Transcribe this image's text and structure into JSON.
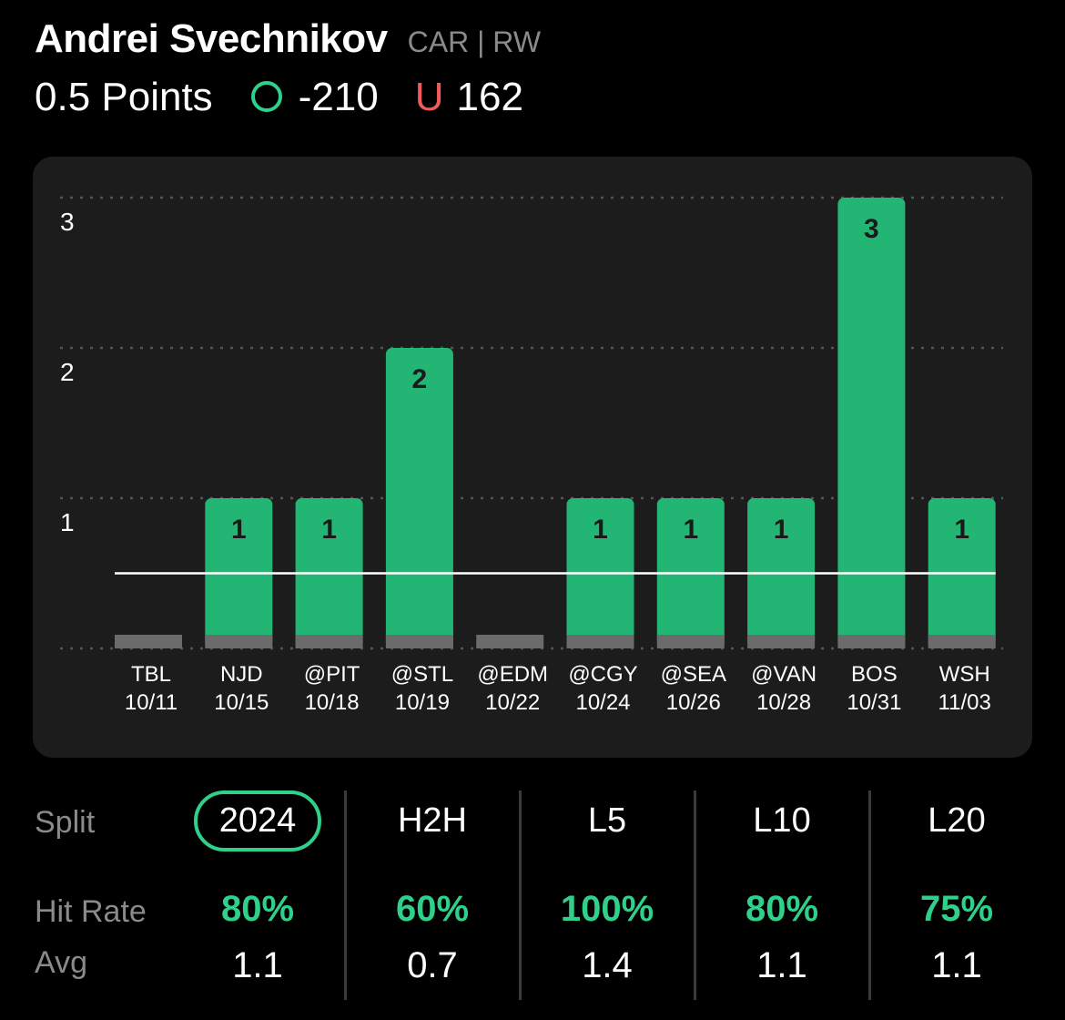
{
  "player": {
    "name": "Andrei Svechnikov",
    "team_pos": "CAR | RW",
    "line_label": "0.5 Points",
    "over_odds": "-210",
    "under_symbol": "U",
    "under_odds": "162"
  },
  "colors": {
    "hit": "#22b573",
    "miss": "#6b6b6b",
    "accent": "#2fd08a",
    "under": "#ef5b5b"
  },
  "chart_data": {
    "type": "bar",
    "categories": [
      "TBL 10/11",
      "NJD 10/15",
      "@PIT 10/18",
      "@STL 10/19",
      "@EDM 10/22",
      "@CGY 10/24",
      "@SEA 10/26",
      "@VAN 10/28",
      "BOS 10/31",
      "WSH 11/03"
    ],
    "opponents": [
      "TBL",
      "NJD",
      "@PIT",
      "@STL",
      "@EDM",
      "@CGY",
      "@SEA",
      "@VAN",
      "BOS",
      "WSH"
    ],
    "dates": [
      "10/11",
      "10/15",
      "10/18",
      "10/19",
      "10/22",
      "10/24",
      "10/26",
      "10/28",
      "10/31",
      "11/03"
    ],
    "values": [
      0,
      1,
      1,
      2,
      0,
      1,
      1,
      1,
      3,
      1
    ],
    "line": 0.5,
    "ylim": [
      0,
      3
    ],
    "yticks": [
      1,
      2,
      3
    ],
    "grid": true
  },
  "splits": {
    "split_label": "Split",
    "hit_label": "Hit Rate",
    "avg_label": "Avg",
    "columns": [
      {
        "name": "2024",
        "hit": "80%",
        "avg": "1.1",
        "active": true
      },
      {
        "name": "H2H",
        "hit": "60%",
        "avg": "0.7",
        "active": false
      },
      {
        "name": "L5",
        "hit": "100%",
        "avg": "1.4",
        "active": false
      },
      {
        "name": "L10",
        "hit": "80%",
        "avg": "1.1",
        "active": false
      },
      {
        "name": "L20",
        "hit": "75%",
        "avg": "1.1",
        "active": false
      }
    ]
  }
}
